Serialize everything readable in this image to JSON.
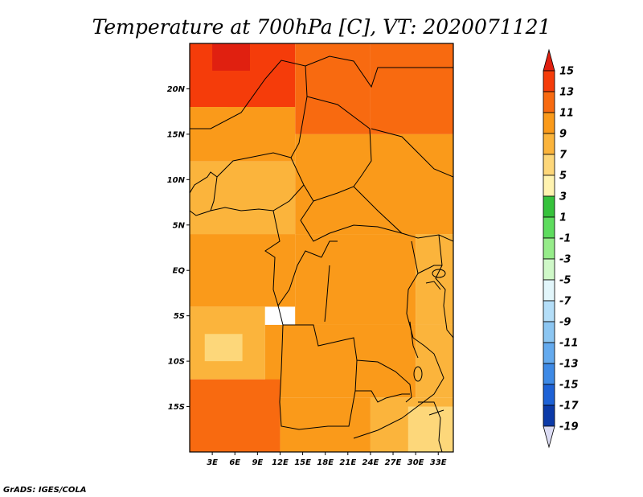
{
  "chart_data": {
    "type": "heatmap",
    "title": "Temperature at 700hPa [C], VT: 2020071121",
    "x_ticks": [
      "3E",
      "6E",
      "9E",
      "12E",
      "15E",
      "18E",
      "21E",
      "24E",
      "27E",
      "30E",
      "33E"
    ],
    "x_tick_values": [
      3,
      6,
      9,
      12,
      15,
      18,
      21,
      24,
      27,
      30,
      33
    ],
    "y_ticks": [
      "20N",
      "15N",
      "10N",
      "5N",
      "EQ",
      "5S",
      "10S",
      "15S"
    ],
    "y_tick_values": [
      20,
      15,
      10,
      5,
      0,
      -5,
      -10,
      -15
    ],
    "xlim": [
      0,
      35
    ],
    "ylim": [
      -20,
      25
    ],
    "colorbar": {
      "labels": [
        "15",
        "13",
        "11",
        "9",
        "7",
        "5",
        "3",
        "1",
        "-1",
        "-3",
        "-5",
        "-7",
        "-9",
        "-11",
        "-13",
        "-15",
        "-17",
        "-19"
      ],
      "bins": [
        {
          "lower": 15,
          "upper": null,
          "color": "#e02010"
        },
        {
          "lower": 13,
          "upper": 15,
          "color": "#f53c0a"
        },
        {
          "lower": 11,
          "upper": 13,
          "color": "#f86a10"
        },
        {
          "lower": 9,
          "upper": 11,
          "color": "#fa9a1a"
        },
        {
          "lower": 7,
          "upper": 9,
          "color": "#fbb43c"
        },
        {
          "lower": 5,
          "upper": 7,
          "color": "#fdd77a"
        },
        {
          "lower": 3,
          "upper": 5,
          "color": "#fff3b0"
        },
        {
          "lower": 1,
          "upper": 3,
          "color": "#36c23c"
        },
        {
          "lower": -1,
          "upper": 1,
          "color": "#5edc5e"
        },
        {
          "lower": -3,
          "upper": -1,
          "color": "#96ec8a"
        },
        {
          "lower": -5,
          "upper": -3,
          "color": "#cff8c8"
        },
        {
          "lower": -7,
          "upper": -5,
          "color": "#e2f6fb"
        },
        {
          "lower": -9,
          "upper": -7,
          "color": "#b4def8"
        },
        {
          "lower": -11,
          "upper": -9,
          "color": "#8cc6f2"
        },
        {
          "lower": -13,
          "upper": -11,
          "color": "#64aaee"
        },
        {
          "lower": -15,
          "upper": -13,
          "color": "#3e8ae6"
        },
        {
          "lower": -17,
          "upper": -15,
          "color": "#1e62d6"
        },
        {
          "lower": -19,
          "upper": -17,
          "color": "#0c3aa8"
        },
        {
          "lower": null,
          "upper": -19,
          "color": "#0a1a78"
        },
        {
          "lower": null,
          "upper": null,
          "color": "#dcdcf4"
        }
      ]
    },
    "field": [
      {
        "lon0": 0,
        "lat0": 18,
        "lon1": 14,
        "lat1": 25,
        "value": 13
      },
      {
        "lon0": 3,
        "lat0": 22,
        "lon1": 8,
        "lat1": 25,
        "value": 15
      },
      {
        "lon0": 5,
        "lat0": 16,
        "lon1": 12,
        "lat1": 20,
        "value": 13
      },
      {
        "lon0": 14,
        "lat0": 15,
        "lon1": 24,
        "lat1": 25,
        "value": 11
      },
      {
        "lon0": 24,
        "lat0": 15,
        "lon1": 35,
        "lat1": 25,
        "value": 11
      },
      {
        "lon0": 0,
        "lat0": 12,
        "lon1": 14,
        "lat1": 18,
        "value": 9
      },
      {
        "lon0": 0,
        "lat0": 4,
        "lon1": 14,
        "lat1": 12,
        "value": 7
      },
      {
        "lon0": 14,
        "lat0": 4,
        "lon1": 35,
        "lat1": 15,
        "value": 9
      },
      {
        "lon0": 0,
        "lat0": -4,
        "lon1": 14,
        "lat1": 4,
        "value": 9
      },
      {
        "lon0": 14,
        "lat0": -6,
        "lon1": 30,
        "lat1": 4,
        "value": 9
      },
      {
        "lon0": 30,
        "lat0": -6,
        "lon1": 35,
        "lat1": 4,
        "value": 7
      },
      {
        "lon0": 0,
        "lat0": -12,
        "lon1": 10,
        "lat1": -4,
        "value": 7
      },
      {
        "lon0": 2,
        "lat0": -10,
        "lon1": 7,
        "lat1": -7,
        "value": 5
      },
      {
        "lon0": 10,
        "lat0": -14,
        "lon1": 30,
        "lat1": -6,
        "value": 9
      },
      {
        "lon0": 30,
        "lat0": -14,
        "lon1": 35,
        "lat1": -6,
        "value": 7
      },
      {
        "lon0": 0,
        "lat0": -20,
        "lon1": 12,
        "lat1": -12,
        "value": 11
      },
      {
        "lon0": 12,
        "lat0": -20,
        "lon1": 24,
        "lat1": -14,
        "value": 9
      },
      {
        "lon0": 24,
        "lat0": -20,
        "lon1": 35,
        "lat1": -14,
        "value": 7
      },
      {
        "lon0": 29,
        "lat0": -20,
        "lon1": 35,
        "lat1": -15,
        "value": 5
      }
    ]
  },
  "credit": "GrADS: IGES/COLA"
}
